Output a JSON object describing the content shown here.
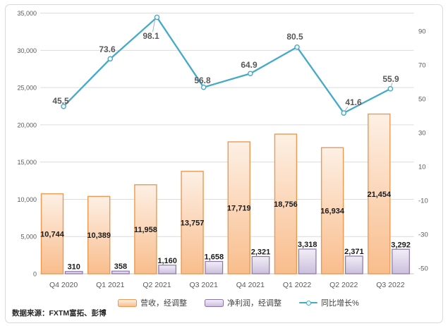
{
  "chart_data": {
    "type": "combo",
    "title": "",
    "categories": [
      "Q4 2020",
      "Q1 2021",
      "Q2 2021",
      "Q3 2021",
      "Q4 2021",
      "Q1 2022",
      "Q2 2022",
      "Q3 2022"
    ],
    "series": [
      {
        "name": "营收，经调整",
        "type": "bar",
        "axis": "left",
        "values": [
          10744,
          10389,
          11958,
          13757,
          17719,
          18756,
          16934,
          21454
        ],
        "border_color": "#EA9A53",
        "fill_top": "#FDF0E5",
        "fill_bottom": "#F9BD8C"
      },
      {
        "name": "净利润，经调整",
        "type": "bar",
        "axis": "left",
        "values": [
          310,
          358,
          1160,
          1658,
          2321,
          3318,
          2371,
          3292
        ],
        "border_color": "#8E74AC",
        "fill_top": "#F1EEF6",
        "fill_bottom": "#CBBFDD"
      },
      {
        "name": "同比增长%",
        "type": "line",
        "axis": "right",
        "values": [
          45.5,
          73.6,
          98.1,
          56.8,
          64.9,
          80.5,
          41.6,
          55.9
        ],
        "line_color": "#45AAC8",
        "marker_fill": "#FFFFFF"
      }
    ],
    "left_axis": {
      "min": 0,
      "max": 35000,
      "step": 5000
    },
    "right_axis": {
      "min": -50,
      "max": 90,
      "step": 20
    },
    "grid": true,
    "legend_position": "bottom",
    "axis_text_color": "#595959",
    "gridline_color": "#DCDCDC",
    "axis_line_color": "#C3C3C3",
    "bar_label_color": "#1A1A1A",
    "line_label_color": "#595959",
    "leader_line_color": "#A8A8A8"
  },
  "source": {
    "text": "数据来源：FXTM富拓、彭博"
  }
}
